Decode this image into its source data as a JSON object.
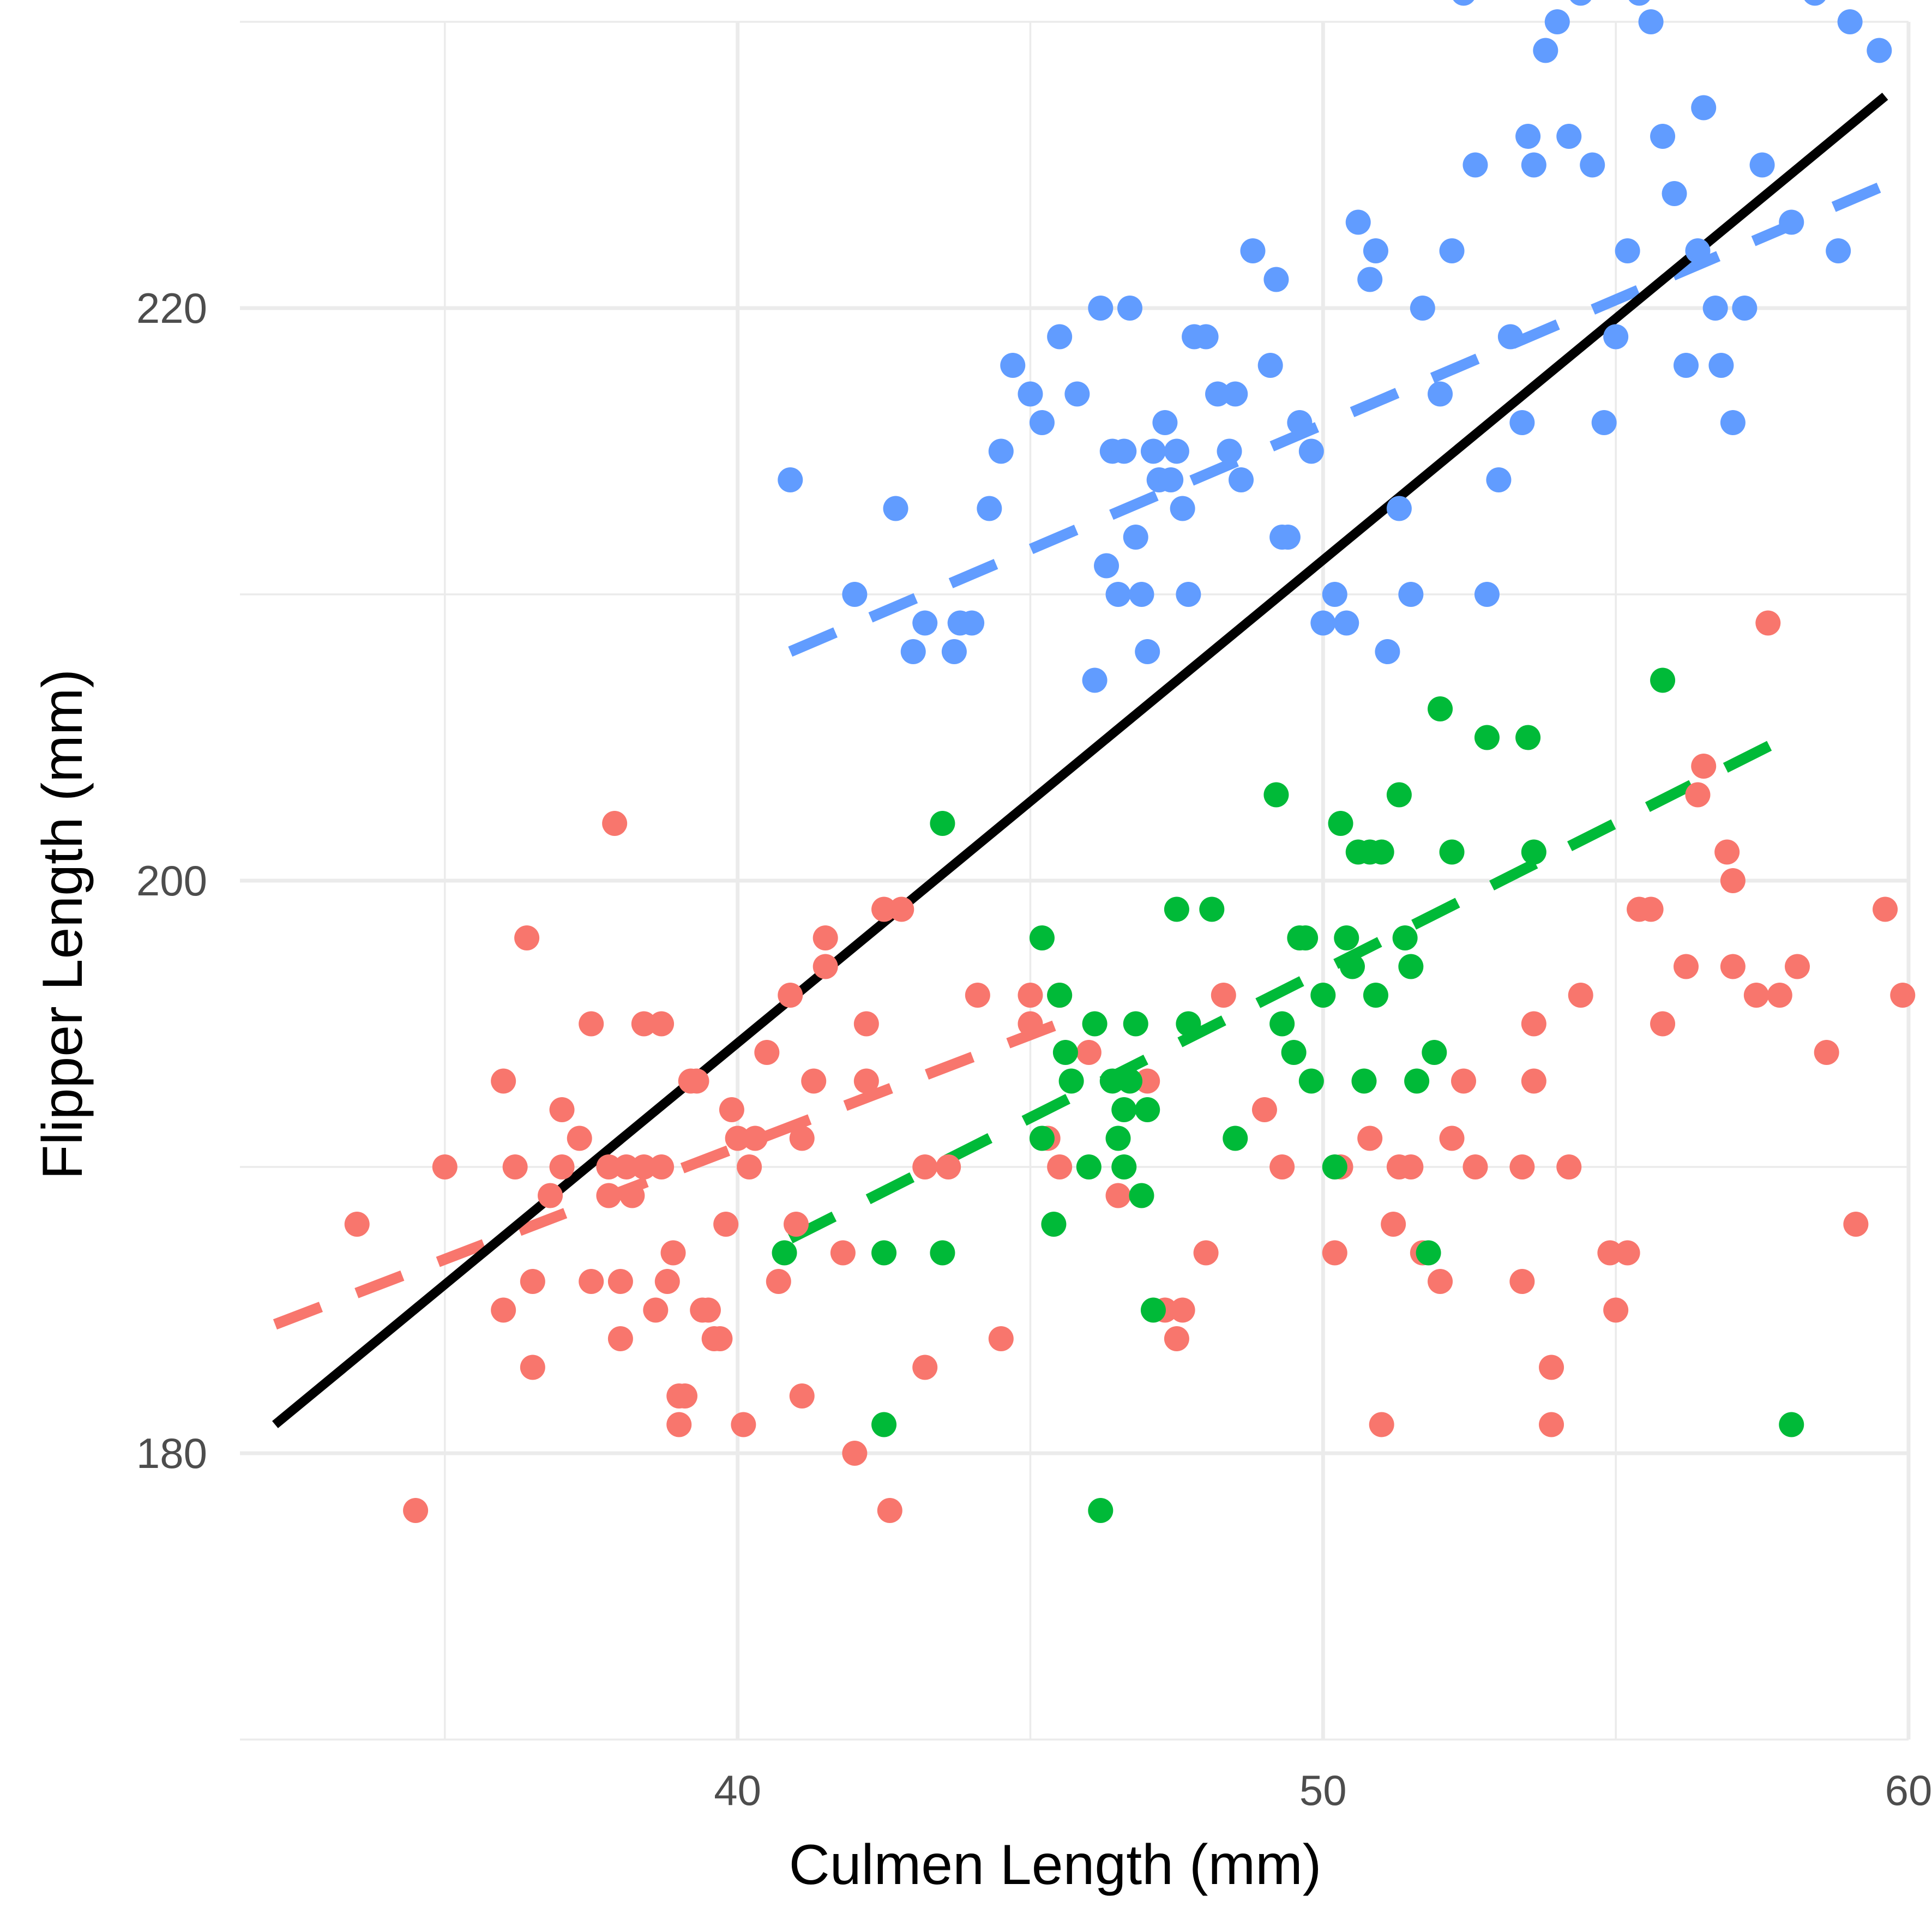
{
  "chart_data": {
    "type": "scatter",
    "xlabel": "Culmen Length (mm)",
    "ylabel": "Flipper Length (mm)",
    "xlim": [
      31.5,
      60.0
    ],
    "ylim": [
      170,
      230
    ],
    "x_ticks": [
      40,
      50,
      60
    ],
    "x_minor_ticks": [
      35,
      45,
      55
    ],
    "y_ticks": [
      180,
      200,
      220
    ],
    "y_minor_ticks": [
      170,
      190,
      210,
      230
    ],
    "grid": true,
    "legend": "none",
    "series": [
      {
        "color": "#F8766D",
        "points": [
          [
            33.5,
            188
          ],
          [
            34.5,
            178
          ],
          [
            35,
            190
          ],
          [
            36,
            193
          ],
          [
            36.2,
            190
          ],
          [
            36.4,
            198
          ],
          [
            36,
            185
          ],
          [
            36.5,
            186
          ],
          [
            36.5,
            183
          ],
          [
            36.8,
            189
          ],
          [
            37,
            192
          ],
          [
            37,
            190
          ],
          [
            37.3,
            191
          ],
          [
            37.5,
            186
          ],
          [
            37.5,
            195
          ],
          [
            37.8,
            190
          ],
          [
            37.8,
            189
          ],
          [
            37.9,
            202
          ],
          [
            38,
            184
          ],
          [
            38,
            186
          ],
          [
            38.1,
            190
          ],
          [
            38.2,
            189
          ],
          [
            38.4,
            190
          ],
          [
            38.4,
            195
          ],
          [
            38.6,
            185
          ],
          [
            38.7,
            195
          ],
          [
            38.7,
            190
          ],
          [
            38.8,
            186
          ],
          [
            38.9,
            187
          ],
          [
            39,
            182
          ],
          [
            39,
            181
          ],
          [
            39.1,
            182
          ],
          [
            39.2,
            193
          ],
          [
            39.3,
            193
          ],
          [
            39.4,
            185
          ],
          [
            39.5,
            185
          ],
          [
            39.6,
            184
          ],
          [
            39.7,
            184
          ],
          [
            39.8,
            188
          ],
          [
            39.9,
            192
          ],
          [
            40,
            191
          ],
          [
            40.1,
            181
          ],
          [
            40.2,
            190
          ],
          [
            40.3,
            191
          ],
          [
            40.5,
            194
          ],
          [
            40.7,
            186
          ],
          [
            40.9,
            196
          ],
          [
            41,
            188
          ],
          [
            41.1,
            191
          ],
          [
            41.1,
            182
          ],
          [
            41.3,
            193
          ],
          [
            41.5,
            197
          ],
          [
            41.5,
            198
          ],
          [
            41.8,
            187
          ],
          [
            42,
            180
          ],
          [
            42.2,
            195
          ],
          [
            42.2,
            193
          ],
          [
            42.5,
            199
          ],
          [
            42.6,
            178
          ],
          [
            42.8,
            199
          ],
          [
            43.2,
            183
          ],
          [
            43.2,
            190
          ],
          [
            43.6,
            190
          ],
          [
            44.1,
            196
          ],
          [
            44.5,
            184
          ],
          [
            45,
            196
          ],
          [
            45,
            195
          ],
          [
            45.3,
            191
          ],
          [
            45.5,
            190
          ],
          [
            45.5,
            196
          ],
          [
            46,
            194
          ],
          [
            46.5,
            189
          ],
          [
            47,
            193
          ],
          [
            47.3,
            185
          ],
          [
            47.5,
            184
          ],
          [
            47.6,
            185
          ],
          [
            48,
            187
          ],
          [
            48.3,
            196
          ],
          [
            49,
            192
          ],
          [
            49.3,
            190
          ],
          [
            50.2,
            187
          ],
          [
            50.3,
            190
          ],
          [
            50.8,
            191
          ],
          [
            51,
            181
          ],
          [
            51.2,
            188
          ],
          [
            51.3,
            190
          ],
          [
            51.5,
            190
          ],
          [
            51.7,
            187
          ],
          [
            52,
            186
          ],
          [
            52.2,
            191
          ],
          [
            52.4,
            193
          ],
          [
            52.6,
            190
          ],
          [
            53.4,
            186
          ],
          [
            53.4,
            190
          ],
          [
            53.6,
            193
          ],
          [
            53.6,
            195
          ],
          [
            53.9,
            181
          ],
          [
            53.9,
            183
          ],
          [
            54.2,
            190
          ],
          [
            54.4,
            196
          ],
          [
            54.9,
            187
          ],
          [
            55,
            185
          ],
          [
            55.2,
            187
          ],
          [
            55.4,
            199
          ],
          [
            55.6,
            199
          ],
          [
            55.8,
            195
          ],
          [
            56.2,
            197
          ],
          [
            56.4,
            203
          ],
          [
            56.5,
            204
          ],
          [
            56.9,
            201
          ],
          [
            57,
            200
          ],
          [
            57,
            197
          ],
          [
            57.4,
            196
          ],
          [
            57.6,
            209
          ],
          [
            57.8,
            196
          ],
          [
            58.1,
            197
          ],
          [
            58.6,
            194
          ],
          [
            59.1,
            188
          ],
          [
            59.6,
            199
          ],
          [
            59.9,
            196
          ]
        ]
      },
      {
        "color": "#00BA38",
        "points": [
          [
            40.8,
            187
          ],
          [
            42.5,
            181
          ],
          [
            42.5,
            187
          ],
          [
            43.5,
            187
          ],
          [
            43.5,
            202
          ],
          [
            45.2,
            198
          ],
          [
            45.2,
            191
          ],
          [
            45.5,
            196
          ],
          [
            45.4,
            188
          ],
          [
            45.6,
            194
          ],
          [
            45.7,
            193
          ],
          [
            46,
            190
          ],
          [
            46.1,
            195
          ],
          [
            46.2,
            178
          ],
          [
            46.4,
            193
          ],
          [
            46.5,
            191
          ],
          [
            46.6,
            190
          ],
          [
            46.6,
            192
          ],
          [
            46.7,
            193
          ],
          [
            46.8,
            195
          ],
          [
            46.9,
            189
          ],
          [
            47,
            192
          ],
          [
            47.1,
            185
          ],
          [
            47.5,
            199
          ],
          [
            47.7,
            195
          ],
          [
            48.1,
            199
          ],
          [
            48.5,
            191
          ],
          [
            49.2,
            203
          ],
          [
            49.3,
            195
          ],
          [
            49.5,
            194
          ],
          [
            49.6,
            198
          ],
          [
            49.7,
            198
          ],
          [
            49.8,
            193
          ],
          [
            50,
            196
          ],
          [
            50.2,
            190
          ],
          [
            50.3,
            202
          ],
          [
            50.4,
            198
          ],
          [
            50.5,
            197
          ],
          [
            50.6,
            201
          ],
          [
            50.7,
            193
          ],
          [
            50.8,
            201
          ],
          [
            50.9,
            196
          ],
          [
            51,
            201
          ],
          [
            51.3,
            203
          ],
          [
            51.4,
            198
          ],
          [
            51.5,
            197
          ],
          [
            51.6,
            193
          ],
          [
            51.8,
            187
          ],
          [
            51.9,
            194
          ],
          [
            52,
            206
          ],
          [
            52.2,
            201
          ],
          [
            52.8,
            205
          ],
          [
            53.5,
            205
          ],
          [
            53.6,
            201
          ],
          [
            55.8,
            207
          ],
          [
            58,
            181
          ]
        ]
      },
      {
        "color": "#619CFF",
        "points": [
          [
            40.9,
            214
          ],
          [
            42,
            210
          ],
          [
            42.7,
            213
          ],
          [
            43,
            208
          ],
          [
            43.2,
            209
          ],
          [
            43.7,
            208
          ],
          [
            43.8,
            209
          ],
          [
            44,
            209
          ],
          [
            44.3,
            213
          ],
          [
            44.5,
            215
          ],
          [
            44.7,
            218
          ],
          [
            45,
            217
          ],
          [
            45.2,
            216
          ],
          [
            45.5,
            219
          ],
          [
            45.8,
            217
          ],
          [
            46.1,
            207
          ],
          [
            46.2,
            220
          ],
          [
            46.3,
            211
          ],
          [
            46.4,
            215
          ],
          [
            46.5,
            210
          ],
          [
            46.6,
            215
          ],
          [
            46.7,
            220
          ],
          [
            46.8,
            212
          ],
          [
            46.9,
            210
          ],
          [
            47,
            208
          ],
          [
            47.1,
            215
          ],
          [
            47.2,
            214
          ],
          [
            47.3,
            216
          ],
          [
            47.4,
            214
          ],
          [
            47.5,
            215
          ],
          [
            47.6,
            213
          ],
          [
            47.7,
            210
          ],
          [
            47.8,
            219
          ],
          [
            48,
            219
          ],
          [
            48.2,
            217
          ],
          [
            48.4,
            215
          ],
          [
            48.5,
            217
          ],
          [
            48.6,
            214
          ],
          [
            48.8,
            222
          ],
          [
            49.1,
            218
          ],
          [
            49.2,
            221
          ],
          [
            49.3,
            212
          ],
          [
            49.4,
            212
          ],
          [
            49.6,
            216
          ],
          [
            49.8,
            215
          ],
          [
            50,
            209
          ],
          [
            50.2,
            210
          ],
          [
            50.4,
            209
          ],
          [
            50.6,
            223
          ],
          [
            50.8,
            221
          ],
          [
            50.9,
            222
          ],
          [
            51.1,
            208
          ],
          [
            51.3,
            213
          ],
          [
            51.5,
            210
          ],
          [
            51.7,
            220
          ],
          [
            52,
            217
          ],
          [
            52.2,
            222
          ],
          [
            52.4,
            231
          ],
          [
            52.6,
            225
          ],
          [
            52.8,
            210
          ],
          [
            53,
            214
          ],
          [
            53.2,
            219
          ],
          [
            53.4,
            216
          ],
          [
            53.5,
            226
          ],
          [
            53.6,
            225
          ],
          [
            53.8,
            229
          ],
          [
            54,
            230
          ],
          [
            54.2,
            226
          ],
          [
            54.4,
            231
          ],
          [
            54.6,
            225
          ],
          [
            54.8,
            216
          ],
          [
            55,
            219
          ],
          [
            55.2,
            222
          ],
          [
            55.4,
            231
          ],
          [
            55.6,
            230
          ],
          [
            55.8,
            226
          ],
          [
            56,
            224
          ],
          [
            56.2,
            218
          ],
          [
            56.4,
            222
          ],
          [
            56.5,
            227
          ],
          [
            56.7,
            220
          ],
          [
            56.8,
            218
          ],
          [
            57,
            216
          ],
          [
            57.2,
            220
          ],
          [
            57.5,
            225
          ],
          [
            58,
            223
          ],
          [
            58.4,
            231
          ],
          [
            58.8,
            222
          ],
          [
            59,
            230
          ],
          [
            59.5,
            229
          ]
        ]
      }
    ],
    "fits": [
      {
        "color": "#F8766D",
        "dash": true,
        "x": [
          32.1,
          46.0
        ],
        "y": [
          184.5,
          195.4
        ]
      },
      {
        "color": "#00BA38",
        "dash": true,
        "x": [
          40.9,
          58.0
        ],
        "y": [
          187.5,
          205.1
        ]
      },
      {
        "color": "#619CFF",
        "dash": true,
        "x": [
          40.9,
          59.6
        ],
        "y": [
          208.0,
          224.3
        ]
      },
      {
        "color": "#000000",
        "dash": false,
        "x": [
          32.1,
          59.6
        ],
        "y": [
          181.0,
          227.4
        ]
      }
    ]
  }
}
